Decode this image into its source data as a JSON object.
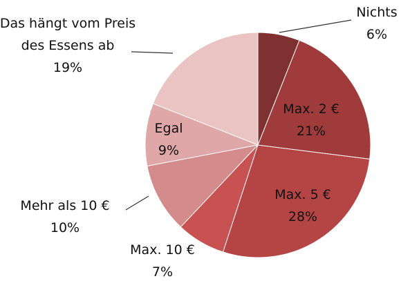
{
  "chart_data": {
    "type": "pie",
    "categories": [
      "Nichts",
      "Max. 2 €",
      "Max. 5 €",
      "Max. 10 €",
      "Mehr als 10 €",
      "Egal",
      "Das hängt vom Preis des Essens ab"
    ],
    "values": [
      6,
      21,
      28,
      7,
      10,
      9,
      19
    ],
    "value_labels": [
      "6%",
      "21%",
      "28%",
      "7%",
      "10%",
      "9%",
      "19%"
    ],
    "colors": [
      "#7f3131",
      "#a03b3b",
      "#b54444",
      "#c85151",
      "#d48b8b",
      "#dfa7a7",
      "#eac3c3"
    ]
  }
}
